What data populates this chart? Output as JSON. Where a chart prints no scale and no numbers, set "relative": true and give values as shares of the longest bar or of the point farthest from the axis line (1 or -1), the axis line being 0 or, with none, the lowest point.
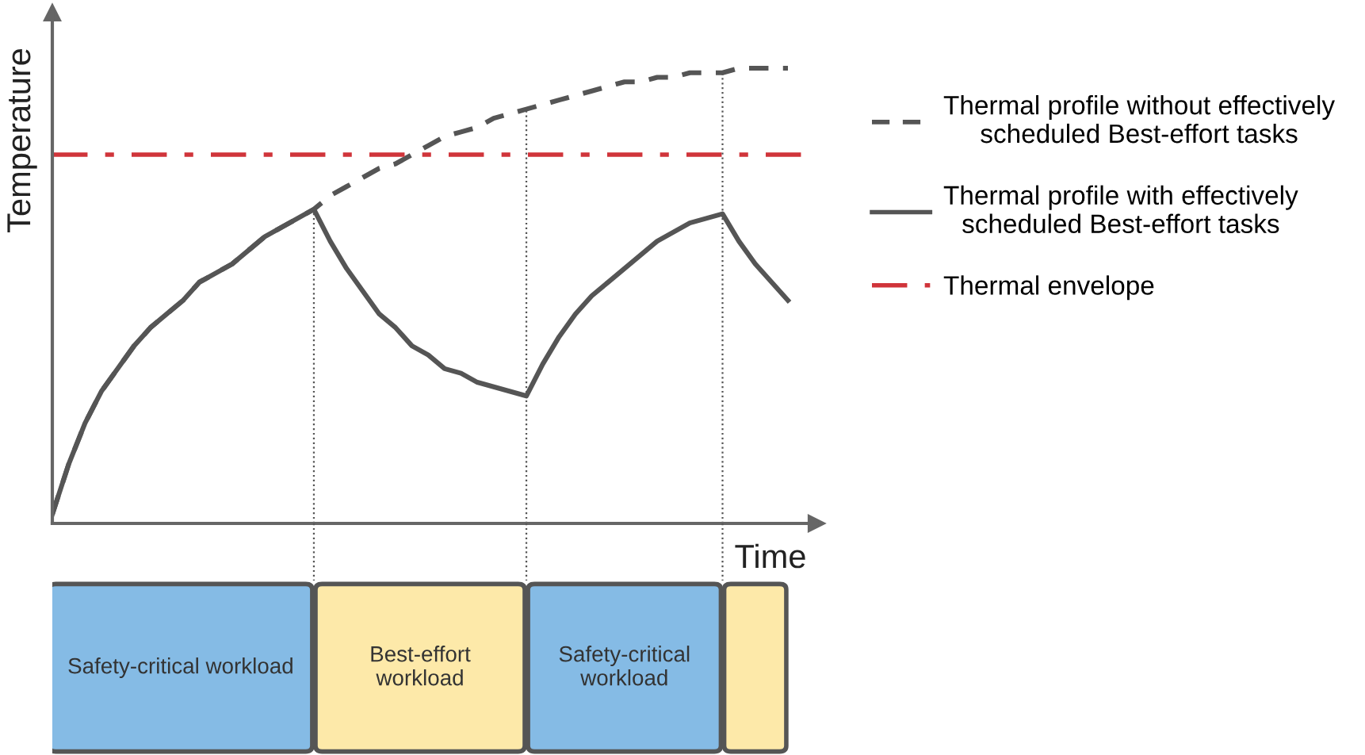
{
  "chart_data": [
    {
      "type": "line",
      "relative": true,
      "ylabel": "Temperature",
      "xlabel": "Time",
      "legend": "right",
      "grid": false,
      "marker": "none",
      "categories": [
        null,
        null,
        null,
        null,
        null,
        null,
        null,
        null,
        null,
        null,
        null,
        null,
        null,
        null,
        null,
        null,
        null,
        null,
        null,
        null,
        null,
        null,
        null,
        null,
        null,
        null,
        null,
        null,
        null,
        null,
        null,
        null,
        null,
        null,
        null,
        null,
        null,
        null,
        null,
        null,
        null,
        null,
        null,
        null,
        null,
        null
      ],
      "series": [
        {
          "name": "Thermal profile without effectively\nscheduled Best-effort tasks",
          "color": "#555555",
          "line_style": "dashed",
          "values": [
            0.02,
            0.13,
            0.22,
            0.29,
            0.34,
            0.39,
            0.43,
            0.46,
            0.49,
            0.53,
            0.55,
            0.57,
            0.6,
            0.63,
            0.65,
            0.67,
            0.69,
            0.72,
            0.74,
            0.76,
            0.78,
            0.79,
            0.81,
            0.83,
            0.85,
            0.86,
            0.87,
            0.89,
            0.9,
            0.91,
            0.92,
            0.93,
            0.94,
            0.95,
            0.96,
            0.97,
            0.97,
            0.98,
            0.98,
            0.99,
            0.99,
            0.99,
            1.0,
            1.0,
            1.0,
            1.0
          ]
        },
        {
          "name": "Thermal profile with effectively\nscheduled Best-effort tasks",
          "color": "#555555",
          "line_style": "solid",
          "values": [
            0.02,
            0.13,
            0.22,
            0.29,
            0.34,
            0.39,
            0.43,
            0.46,
            0.49,
            0.53,
            0.55,
            0.57,
            0.6,
            0.63,
            0.65,
            0.67,
            0.69,
            0.62,
            0.56,
            0.51,
            0.46,
            0.43,
            0.39,
            0.37,
            0.34,
            0.33,
            0.31,
            0.3,
            0.29,
            0.28,
            0.35,
            0.41,
            0.46,
            0.5,
            0.53,
            0.56,
            0.59,
            0.62,
            0.64,
            0.66,
            0.67,
            0.68,
            0.62,
            0.57,
            0.53,
            0.49
          ]
        }
      ],
      "ref_lines": [
        {
          "axis": "y",
          "value": 0.81,
          "label": "Thermal envelope",
          "color": "#d0343a",
          "line_style": "dashdot"
        }
      ]
    },
    {
      "type": "other",
      "annotations": [
        "Safety-critical workload",
        "Best-effort\nworkload",
        "Safety-critical\nworkload"
      ],
      "colors": [
        "#85bbe5",
        "#fde9a9",
        "#85bbe5",
        "#fde9a9"
      ]
    }
  ]
}
